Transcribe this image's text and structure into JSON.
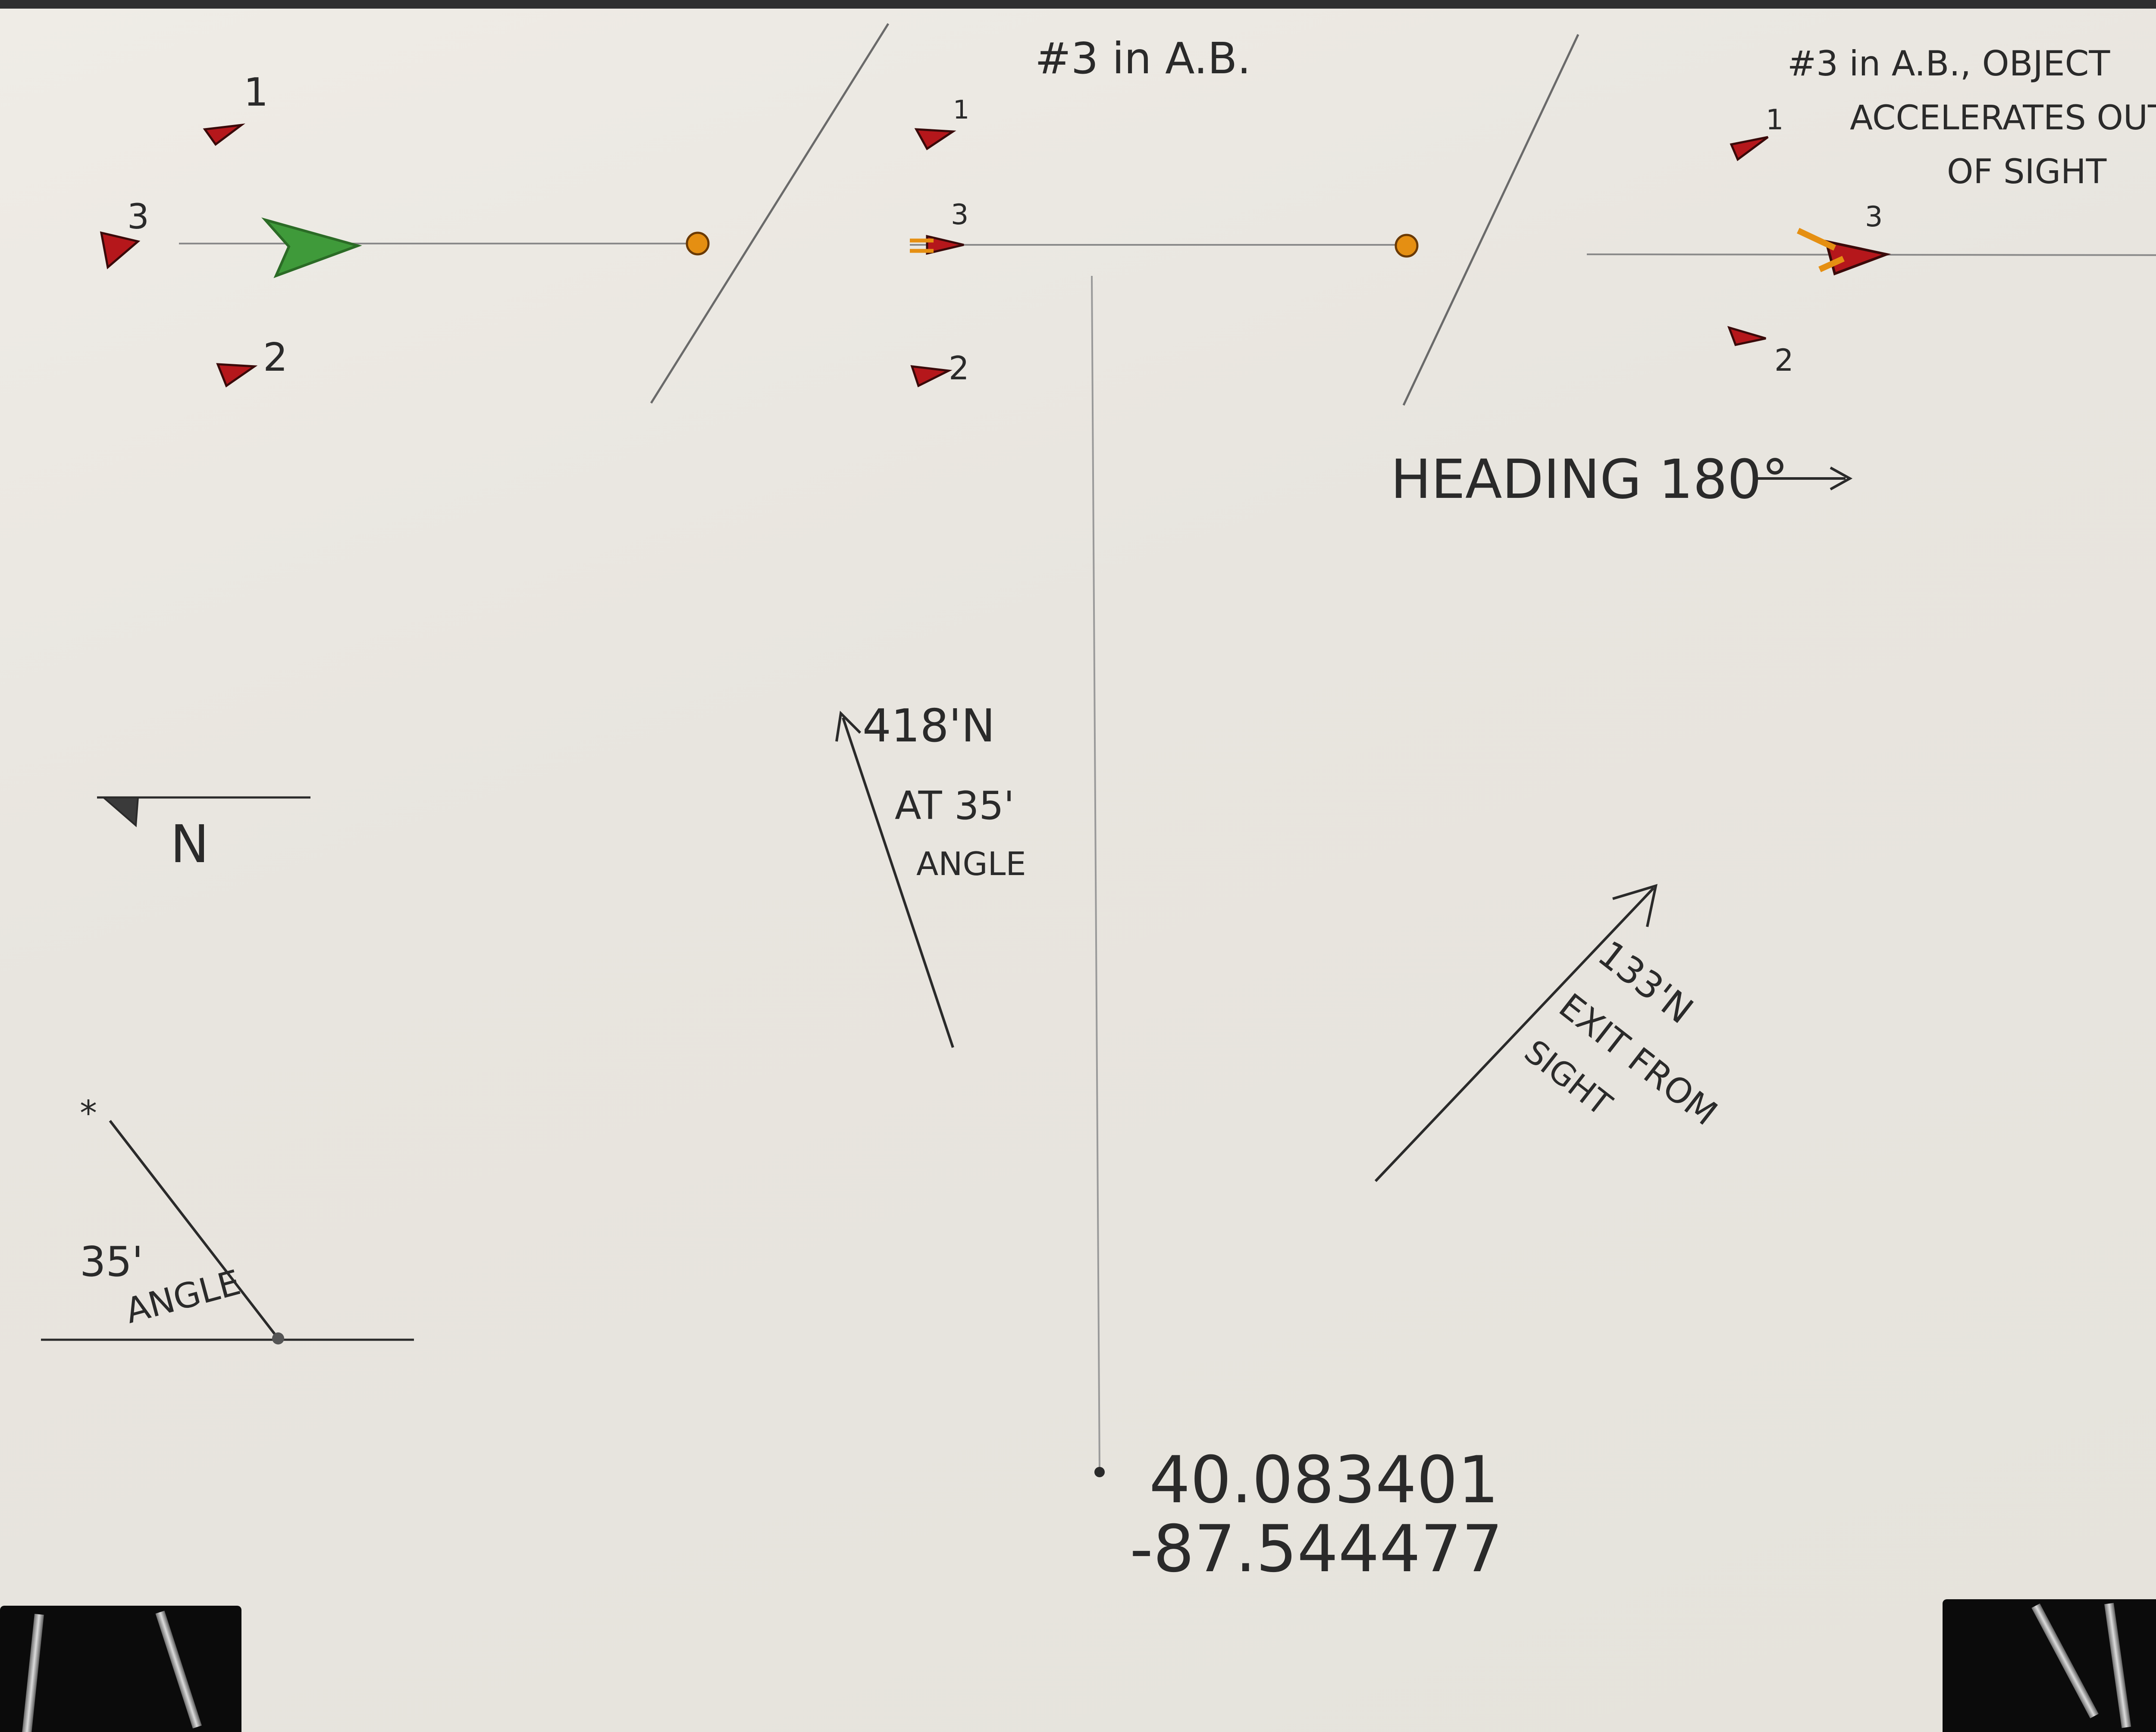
{
  "title": "#3 in A.B.",
  "note": {
    "line1": "#3 in A.B., OBJECT",
    "line2": "ACCELERATES OUT",
    "line3": "OF SIGHT"
  },
  "heading": "HEADING 180°",
  "compass_label": "N",
  "angle_label": {
    "value": "35'",
    "word": "ANGLE"
  },
  "vector1": {
    "distance": "418'N",
    "at": "AT 35'",
    "word": "ANGLE"
  },
  "vector2": {
    "distance": "133'N",
    "exit1": "EXIT FROM",
    "exit2": "SIGHT"
  },
  "coordinates": {
    "lat": "40.083401",
    "lon": "-87.544477"
  },
  "object_labels": {
    "one": "1",
    "two": "2",
    "three": "3"
  },
  "colors": {
    "paper": "#ebe8e2",
    "object_red": "#b5171b",
    "observer_green": "#3f9a3a",
    "marker_orange": "#e58f12",
    "ink": "#2a2a2a"
  }
}
